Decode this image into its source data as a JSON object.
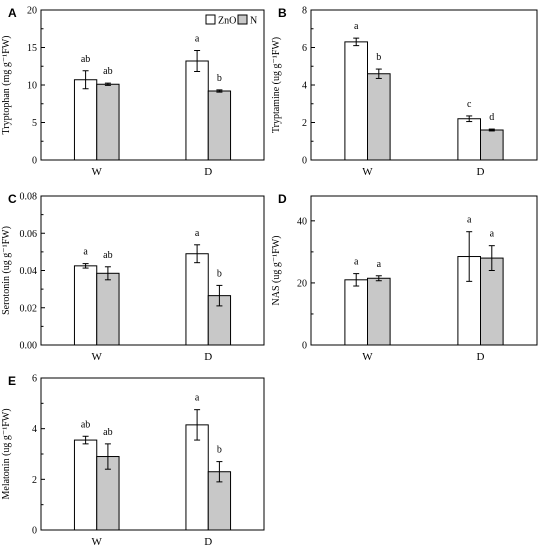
{
  "chart_data": [
    {
      "panel": "A",
      "type": "bar",
      "categories": [
        "W",
        "D"
      ],
      "ylabel": "Tryptophan (mg g⁻¹FW)",
      "ylim": [
        0,
        20
      ],
      "yticks": [
        "0",
        "5",
        "10",
        "15",
        "20"
      ],
      "legend": {
        "placement": "top-right",
        "entries": [
          "ZnO",
          "N"
        ]
      },
      "series": [
        {
          "name": "ZnO",
          "values": [
            10.7,
            13.2
          ],
          "errors": [
            1.2,
            1.4
          ],
          "labels": [
            "ab",
            "a"
          ]
        },
        {
          "name": "N",
          "values": [
            10.1,
            9.2
          ],
          "errors": [
            0.15,
            0.15
          ],
          "labels": [
            "ab",
            "b"
          ]
        }
      ]
    },
    {
      "panel": "B",
      "type": "bar",
      "categories": [
        "W",
        "D"
      ],
      "ylabel": "Tryptamine (ug g⁻¹FW)",
      "ylim": [
        0,
        8
      ],
      "yticks": [
        "0",
        "2",
        "4",
        "6",
        "8"
      ],
      "series": [
        {
          "name": "ZnO",
          "values": [
            6.3,
            2.2
          ],
          "errors": [
            0.2,
            0.15
          ],
          "labels": [
            "a",
            "c"
          ]
        },
        {
          "name": "N",
          "values": [
            4.6,
            1.6
          ],
          "errors": [
            0.25,
            0.05
          ],
          "labels": [
            "b",
            "d"
          ]
        }
      ]
    },
    {
      "panel": "C",
      "type": "bar",
      "categories": [
        "W",
        "D"
      ],
      "ylabel": "Serotonin (ug g⁻¹FW)",
      "ylim": [
        0,
        0.08
      ],
      "yticks": [
        "0.00",
        "0.02",
        "0.04",
        "0.06",
        "0.08"
      ],
      "series": [
        {
          "name": "ZnO",
          "values": [
            0.0425,
            0.049
          ],
          "errors": [
            0.0012,
            0.0048
          ],
          "labels": [
            "a",
            "a"
          ]
        },
        {
          "name": "N",
          "values": [
            0.0385,
            0.0265
          ],
          "errors": [
            0.0035,
            0.0055
          ],
          "labels": [
            "ab",
            "b"
          ]
        }
      ]
    },
    {
      "panel": "D",
      "type": "bar",
      "categories": [
        "W",
        "D"
      ],
      "ylabel": "NAS (ug g⁻¹FW)",
      "ylim": [
        0,
        48
      ],
      "yticks": [
        "0",
        "20",
        "40"
      ],
      "series": [
        {
          "name": "ZnO",
          "values": [
            21.0,
            28.5
          ],
          "errors": [
            2.0,
            8.0
          ],
          "labels": [
            "a",
            "a"
          ]
        },
        {
          "name": "N",
          "values": [
            21.5,
            28.0
          ],
          "errors": [
            0.8,
            4.0
          ],
          "labels": [
            "a",
            "a"
          ]
        }
      ]
    },
    {
      "panel": "E",
      "type": "bar",
      "categories": [
        "W",
        "D"
      ],
      "ylabel": "Melatonin (ug g⁻¹FW)",
      "ylim": [
        0,
        6
      ],
      "yticks": [
        "0",
        "2",
        "4",
        "6"
      ],
      "series": [
        {
          "name": "ZnO",
          "values": [
            3.55,
            4.15
          ],
          "errors": [
            0.15,
            0.6
          ],
          "labels": [
            "ab",
            "a"
          ]
        },
        {
          "name": "N",
          "values": [
            2.9,
            2.3
          ],
          "errors": [
            0.5,
            0.4
          ],
          "labels": [
            "ab",
            "b"
          ]
        }
      ]
    }
  ],
  "colors": {
    "ZnO": "#ffffff",
    "N": "#c8c8c8",
    "axis": "#000000"
  }
}
